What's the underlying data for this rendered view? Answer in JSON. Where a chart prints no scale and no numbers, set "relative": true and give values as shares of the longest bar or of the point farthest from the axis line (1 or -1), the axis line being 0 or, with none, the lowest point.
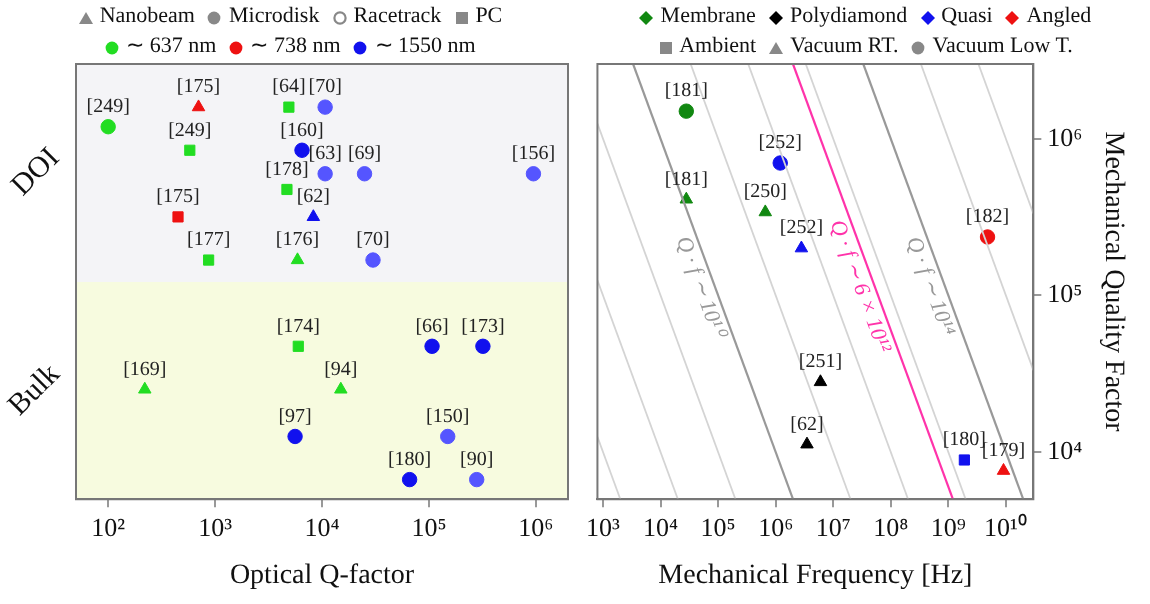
{
  "chart_data": [
    {
      "type": "scatter",
      "xlabel": "Optical Q-factor",
      "relative": true,
      "log": "x",
      "xlim": [
        50,
        2000000
      ],
      "xticks": [
        {
          "value": 100,
          "label": "10²"
        },
        {
          "value": 1000,
          "label": "10³"
        },
        {
          "value": 10000,
          "label": "10⁴"
        },
        {
          "value": 100000,
          "label": "10⁵"
        },
        {
          "value": 1000000,
          "label": "10⁶"
        }
      ],
      "annotations": [
        "Nanobeam",
        "Microdisk",
        "Racetrack",
        "PC",
        "∼ 637 nm",
        "∼ 738 nm",
        "∼ 1550 nm",
        "DOI",
        "Bulk",
        {
          "text": "[175]",
          "x": 700,
          "y": 1.0
        },
        {
          "text": "[64]",
          "x": 4900,
          "y": 1.0
        },
        {
          "text": "[249]",
          "x": 580,
          "y": 0.89
        },
        {
          "text": "[178]",
          "x": 4700,
          "y": 0.79
        },
        {
          "text": "[177]",
          "x": 870,
          "y": 0.61
        },
        {
          "text": "[174]",
          "x": 6000,
          "y": 0.39
        },
        {
          "text": "[70]",
          "x": 10700,
          "y": 1.0
        },
        {
          "text": "[63]",
          "x": 10700,
          "y": 0.83
        },
        {
          "text": "[69]",
          "x": 25000,
          "y": 0.83
        },
        {
          "text": "[156]",
          "x": 950000,
          "y": 0.83
        },
        {
          "text": "[70]",
          "x": 30000,
          "y": 0.61
        },
        {
          "text": "[150]",
          "x": 150000,
          "y": 0.16
        },
        {
          "text": "[90]",
          "x": 280000,
          "y": 0.05
        },
        {
          "text": "[249]",
          "x": 100,
          "y": 0.95
        },
        {
          "text": "[160]",
          "x": 6500,
          "y": 0.89
        },
        {
          "text": "[66]",
          "x": 107000,
          "y": 0.39
        },
        {
          "text": "[173]",
          "x": 320000,
          "y": 0.39
        },
        {
          "text": "[97]",
          "x": 5600,
          "y": 0.16
        },
        {
          "text": "[180]",
          "x": 66000,
          "y": 0.05
        },
        {
          "text": "[175]",
          "x": 450,
          "y": 0.72
        },
        {
          "text": "[62]",
          "x": 8300,
          "y": 0.72
        },
        {
          "text": "[176]",
          "x": 5900,
          "y": 0.61
        },
        {
          "text": "[169]",
          "x": 220,
          "y": 0.28
        },
        {
          "text": "[94]",
          "x": 15000,
          "y": 0.28
        }
      ],
      "series": [
        {
          "color": "#ee1111",
          "marker": "triangle",
          "x": [
            700
          ],
          "values": [
            1.0
          ]
        },
        {
          "color": "#22dd22",
          "marker": "square",
          "x": [
            4900,
            580,
            4700,
            870,
            6000
          ],
          "values": [
            1.0,
            0.89,
            0.79,
            0.61,
            0.39
          ]
        },
        {
          "color": "#5555ff",
          "marker": "circle",
          "x": [
            10700,
            10700,
            25000,
            950000,
            30000,
            150000,
            280000
          ],
          "values": [
            1.0,
            0.83,
            0.83,
            0.83,
            0.61,
            0.16,
            0.05
          ]
        },
        {
          "color": "#22dd22",
          "marker": "circle",
          "x": [
            100
          ],
          "values": [
            0.95
          ]
        },
        {
          "color": "#1111ee",
          "marker": "circle",
          "x": [
            6500,
            107000,
            320000,
            5600,
            66000
          ],
          "values": [
            0.89,
            0.39,
            0.39,
            0.16,
            0.05
          ]
        },
        {
          "color": "#ee1111",
          "marker": "square",
          "x": [
            450
          ],
          "values": [
            0.72
          ]
        },
        {
          "color": "#1111ee",
          "marker": "triangle",
          "x": [
            8300
          ],
          "values": [
            0.72
          ]
        },
        {
          "color": "#22dd22",
          "marker": "triangle",
          "x": [
            5900,
            220,
            15000
          ],
          "values": [
            0.61,
            0.28,
            0.28
          ]
        }
      ]
    },
    {
      "type": "scatter",
      "xlabel": "Mechanical Frequency [Hz]",
      "ylabel": "Mechanical Quality Factor",
      "log": "xy",
      "xlim": [
        800,
        30000000000
      ],
      "ylim": [
        5000,
        3000000
      ],
      "xticks": [
        {
          "value": 1000,
          "label": "10³"
        },
        {
          "value": 10000,
          "label": "10⁴"
        },
        {
          "value": 100000,
          "label": "10⁵"
        },
        {
          "value": 1000000,
          "label": "10⁶"
        },
        {
          "value": 10000000,
          "label": "10⁷"
        },
        {
          "value": 100000000,
          "label": "10⁸"
        },
        {
          "value": 1000000000,
          "label": "10⁹"
        },
        {
          "value": 10000000000,
          "label": "10¹⁰"
        }
      ],
      "yticks": [
        {
          "value": 10000,
          "label": "10⁴"
        },
        {
          "value": 100000,
          "label": "10⁵"
        },
        {
          "value": 1000000,
          "label": "10⁶"
        }
      ],
      "annotations": [
        "Membrane",
        "Polydiamond",
        "Quasi",
        "Angled",
        "Ambient",
        "Vacuum RT.",
        "Vacuum Low T.",
        {
          "text": "[181]",
          "x": 28000,
          "y": 1500000
        },
        {
          "text": "[252]",
          "x": 1200000,
          "y": 700000
        },
        {
          "text": "[181]",
          "x": 28000,
          "y": 410000
        },
        {
          "text": "[250]",
          "x": 660000,
          "y": 340000
        },
        {
          "text": "[252]",
          "x": 2800000,
          "y": 200000
        },
        {
          "text": "[182]",
          "x": 4800000000,
          "y": 236000
        },
        {
          "text": "[251]",
          "x": 6000000,
          "y": 28000
        },
        {
          "text": "[62]",
          "x": 3500000,
          "y": 11200
        },
        {
          "text": "[180]",
          "x": 1900000000,
          "y": 8900
        },
        {
          "text": "[179]",
          "x": 9100000000,
          "y": 7600
        }
      ],
      "series": [
        {
          "type": "line",
          "color": "#d4d4d4",
          "x": [
            800,
            2000
          ],
          "values": [
            12500,
            5000
          ]
        },
        {
          "type": "line",
          "color": "#d4d4d4",
          "x": [
            800,
            20000
          ],
          "values": [
            125000,
            5000
          ]
        },
        {
          "type": "line",
          "color": "#d4d4d4",
          "x": [
            800,
            200000
          ],
          "values": [
            1250000,
            5000
          ]
        },
        {
          "type": "line",
          "name": "Q · f ∼ 10¹⁰",
          "color": "#999999",
          "x": [
            3333,
            2000000
          ],
          "values": [
            3000000,
            5000
          ]
        },
        {
          "type": "line",
          "color": "#d4d4d4",
          "x": [
            33333,
            20000000
          ],
          "values": [
            3000000,
            5000
          ]
        },
        {
          "type": "line",
          "color": "#d4d4d4",
          "x": [
            333333,
            200000000
          ],
          "values": [
            3000000,
            5000
          ]
        },
        {
          "type": "line",
          "color": "#d4d4d4",
          "x": [
            3333333,
            2000000000
          ],
          "values": [
            3000000,
            5000
          ]
        },
        {
          "type": "line",
          "name": "Q · f ∼ 10¹⁴",
          "color": "#999999",
          "x": [
            33333333,
            20000000000
          ],
          "values": [
            3000000,
            5000
          ]
        },
        {
          "type": "line",
          "color": "#d4d4d4",
          "x": [
            333333333,
            30000000000
          ],
          "values": [
            3000000,
            33333
          ]
        },
        {
          "type": "line",
          "color": "#d4d4d4",
          "x": [
            3333333333,
            30000000000
          ],
          "values": [
            3000000,
            333333
          ]
        },
        {
          "type": "line",
          "name": "Q · f ∼ 6 × 10¹²",
          "color": "#ff33aa",
          "x": [
            2000000,
            1200000000
          ],
          "values": [
            3000000,
            5000
          ]
        },
        {
          "color": "#118811",
          "marker": "circle",
          "x": [
            28000
          ],
          "values": [
            1500000
          ]
        },
        {
          "color": "#1111ee",
          "marker": "circle",
          "x": [
            1200000
          ],
          "values": [
            700000
          ]
        },
        {
          "color": "#118811",
          "marker": "triangle",
          "x": [
            28000,
            660000
          ],
          "values": [
            410000,
            340000
          ]
        },
        {
          "color": "#1111ee",
          "marker": "triangle",
          "x": [
            2800000
          ],
          "values": [
            200000
          ]
        },
        {
          "color": "#ee1111",
          "marker": "circle",
          "x": [
            4800000000
          ],
          "values": [
            236000
          ]
        },
        {
          "color": "#000000",
          "marker": "triangle",
          "x": [
            6000000,
            3500000
          ],
          "values": [
            28000,
            11200
          ]
        },
        {
          "color": "#1111ee",
          "marker": "square",
          "x": [
            1900000000
          ],
          "values": [
            8900
          ]
        },
        {
          "color": "#ee1111",
          "marker": "triangle",
          "x": [
            9100000000
          ],
          "values": [
            7600
          ]
        }
      ]
    }
  ]
}
